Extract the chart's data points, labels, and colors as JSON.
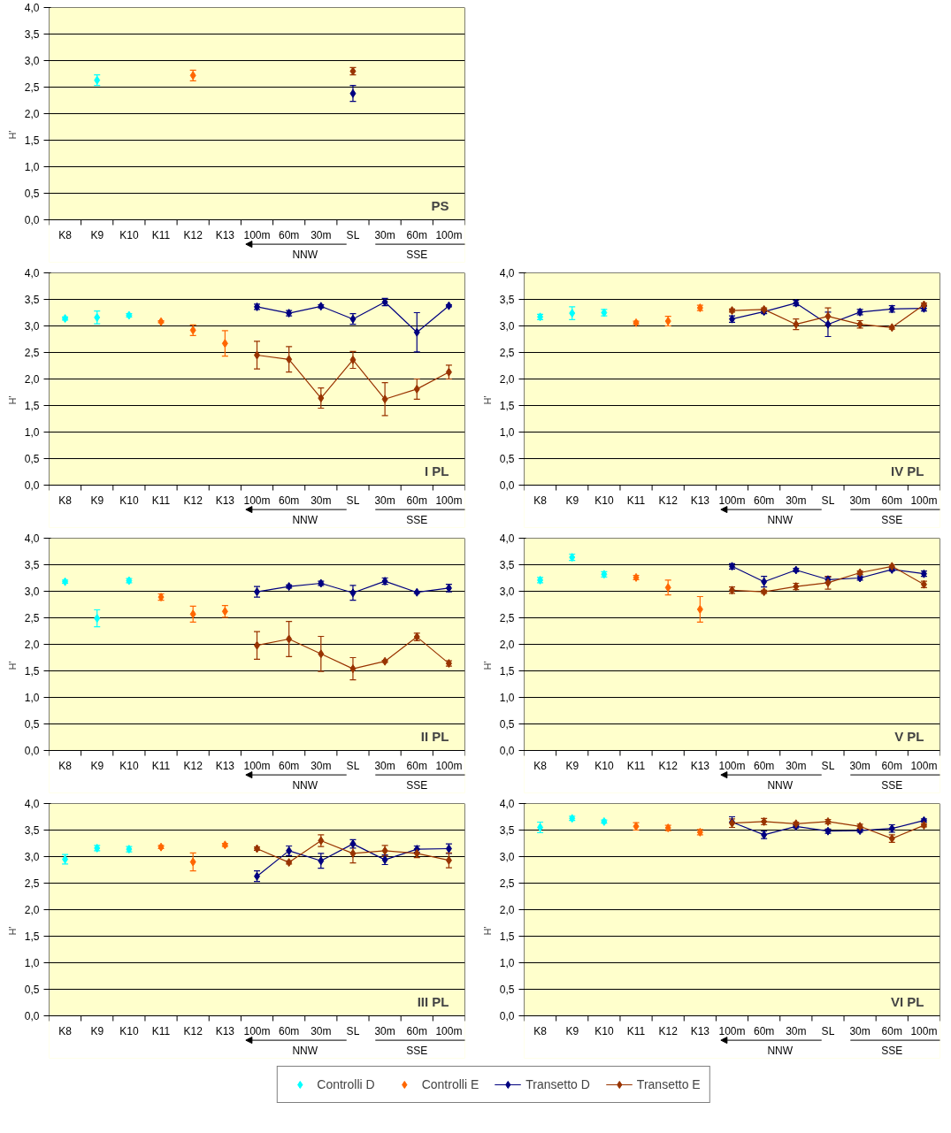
{
  "chart_data": [
    {
      "type": "scatter",
      "title": "PS",
      "ylabel": "H'",
      "categories": [
        "K8",
        "K9",
        "K10",
        "K11",
        "K12",
        "K13",
        "100m",
        "60m",
        "30m",
        "SL",
        "30m",
        "60m",
        "100m"
      ],
      "ylim": [
        0,
        4
      ],
      "yticks": [
        {
          "value": 0,
          "label": "0,0"
        },
        {
          "value": 0.5,
          "label": "0,5"
        },
        {
          "value": 1,
          "label": "1,0"
        },
        {
          "value": 1.5,
          "label": "1,5"
        },
        {
          "value": 2,
          "label": "2,0"
        },
        {
          "value": 2.5,
          "label": "2,5"
        },
        {
          "value": 3,
          "label": "3,0"
        },
        {
          "value": 3.5,
          "label": "3,5"
        },
        {
          "value": 4,
          "label": "4,0"
        }
      ],
      "grid": "y",
      "marker": "diamond",
      "annotations": [
        "NNW",
        "SSE"
      ],
      "series": [
        {
          "color": "#00ffff",
          "values": [
            null,
            2.63,
            null,
            null,
            null,
            null,
            null,
            null,
            null,
            null,
            null,
            null,
            null
          ],
          "errors": [
            null,
            0.1,
            null,
            null,
            null,
            null,
            null,
            null,
            null,
            null,
            null,
            null,
            null
          ]
        },
        {
          "color": "#ff6600",
          "values": [
            null,
            null,
            null,
            null,
            2.72,
            null,
            null,
            null,
            null,
            null,
            null,
            null,
            null
          ],
          "errors": [
            null,
            null,
            null,
            null,
            0.1,
            null,
            null,
            null,
            null,
            null,
            null,
            null,
            null
          ]
        },
        {
          "type": "line",
          "color": "#000080",
          "values": [
            null,
            null,
            null,
            null,
            null,
            null,
            null,
            null,
            null,
            2.38,
            null,
            null,
            null
          ],
          "errors": [
            null,
            null,
            null,
            null,
            null,
            null,
            null,
            null,
            null,
            0.15,
            null,
            null,
            null
          ]
        },
        {
          "type": "line",
          "color": "#993300",
          "values": [
            null,
            null,
            null,
            null,
            null,
            null,
            null,
            null,
            null,
            2.8,
            null,
            null,
            null
          ],
          "errors": [
            null,
            null,
            null,
            null,
            null,
            null,
            null,
            null,
            null,
            0.07,
            null,
            null,
            null
          ]
        }
      ]
    },
    {
      "type": "scatter",
      "title": "I PL",
      "ylabel": "H'",
      "categories": [
        "K8",
        "K9",
        "K10",
        "K11",
        "K12",
        "K13",
        "100m",
        "60m",
        "30m",
        "SL",
        "30m",
        "60m",
        "100m"
      ],
      "ylim": [
        0,
        4
      ],
      "yticks": [
        {
          "value": 0,
          "label": "0,0"
        },
        {
          "value": 0.5,
          "label": "0,5"
        },
        {
          "value": 1,
          "label": "1,0"
        },
        {
          "value": 1.5,
          "label": "1,5"
        },
        {
          "value": 2,
          "label": "2,0"
        },
        {
          "value": 2.5,
          "label": "2,5"
        },
        {
          "value": 3,
          "label": "3,0"
        },
        {
          "value": 3.5,
          "label": "3,5"
        },
        {
          "value": 4,
          "label": "4,0"
        }
      ],
      "grid": "y",
      "marker": "diamond",
      "annotations": [
        "NNW",
        "SSE"
      ],
      "series": [
        {
          "color": "#00ffff",
          "values": [
            3.14,
            3.16,
            3.2,
            null,
            null,
            null,
            null,
            null,
            null,
            null,
            null,
            null,
            null
          ],
          "errors": [
            0.03,
            0.12,
            0.03,
            null,
            null,
            null,
            null,
            null,
            null,
            null,
            null,
            null,
            null
          ]
        },
        {
          "color": "#ff6600",
          "values": [
            null,
            null,
            null,
            3.08,
            2.92,
            2.67,
            null,
            null,
            null,
            null,
            null,
            null,
            null
          ],
          "errors": [
            null,
            null,
            null,
            0.02,
            0.1,
            0.24,
            null,
            null,
            null,
            null,
            null,
            null,
            null
          ]
        },
        {
          "type": "line",
          "color": "#000080",
          "values": [
            null,
            null,
            null,
            null,
            null,
            null,
            3.36,
            3.24,
            3.37,
            3.13,
            3.45,
            2.88,
            3.38
          ],
          "errors": [
            null,
            null,
            null,
            null,
            null,
            null,
            0.05,
            0.05,
            0.03,
            0.1,
            0.07,
            0.37,
            0.02
          ]
        },
        {
          "type": "line",
          "color": "#993300",
          "values": [
            null,
            null,
            null,
            null,
            null,
            null,
            2.45,
            2.37,
            1.64,
            2.36,
            1.62,
            1.81,
            2.13
          ],
          "errors": [
            null,
            null,
            null,
            null,
            null,
            null,
            0.26,
            0.24,
            0.19,
            0.16,
            0.31,
            0.19,
            0.13
          ]
        }
      ]
    },
    {
      "type": "scatter",
      "title": "IV PL",
      "ylabel": "H'",
      "categories": [
        "K8",
        "K9",
        "K10",
        "K11",
        "K12",
        "K13",
        "100m",
        "60m",
        "30m",
        "SL",
        "30m",
        "60m",
        "100m"
      ],
      "ylim": [
        0,
        4
      ],
      "yticks": [
        {
          "value": 0,
          "label": "0,0"
        },
        {
          "value": 0.5,
          "label": "0,5"
        },
        {
          "value": 1,
          "label": "1,0"
        },
        {
          "value": 1.5,
          "label": "1,5"
        },
        {
          "value": 2,
          "label": "2,0"
        },
        {
          "value": 2.5,
          "label": "2,5"
        },
        {
          "value": 3,
          "label": "3,0"
        },
        {
          "value": 3.5,
          "label": "3,5"
        },
        {
          "value": 4,
          "label": "4,0"
        }
      ],
      "grid": "y",
      "marker": "diamond",
      "annotations": [
        "NNW",
        "SSE"
      ],
      "series": [
        {
          "color": "#00ffff",
          "values": [
            3.17,
            3.24,
            3.25,
            null,
            null,
            null,
            null,
            null,
            null,
            null,
            null,
            null,
            null
          ],
          "errors": [
            0.05,
            0.12,
            0.06,
            null,
            null,
            null,
            null,
            null,
            null,
            null,
            null,
            null,
            null
          ]
        },
        {
          "color": "#ff6600",
          "values": [
            null,
            null,
            null,
            3.06,
            3.09,
            3.34,
            null,
            null,
            null,
            null,
            null,
            null,
            null
          ],
          "errors": [
            null,
            null,
            null,
            0.03,
            0.09,
            0.05,
            null,
            null,
            null,
            null,
            null,
            null,
            null
          ]
        },
        {
          "type": "line",
          "color": "#000080",
          "values": [
            null,
            null,
            null,
            null,
            null,
            null,
            3.13,
            3.27,
            3.43,
            3.03,
            3.26,
            3.32,
            3.33
          ],
          "errors": [
            null,
            null,
            null,
            null,
            null,
            null,
            0.06,
            0.04,
            0.05,
            0.23,
            0.05,
            0.06,
            0.05
          ]
        },
        {
          "type": "line",
          "color": "#993300",
          "values": [
            null,
            null,
            null,
            null,
            null,
            null,
            3.29,
            3.31,
            3.03,
            3.18,
            3.03,
            2.97,
            3.4
          ],
          "errors": [
            null,
            null,
            null,
            null,
            null,
            null,
            0.03,
            0.03,
            0.1,
            0.16,
            0.07,
            0.03,
            0.03
          ]
        }
      ]
    },
    {
      "type": "scatter",
      "title": "II PL",
      "ylabel": "H'",
      "categories": [
        "K8",
        "K9",
        "K10",
        "K11",
        "K12",
        "K13",
        "100m",
        "60m",
        "30m",
        "SL",
        "30m",
        "60m",
        "100m"
      ],
      "ylim": [
        0,
        4
      ],
      "yticks": [
        {
          "value": 0,
          "label": "0,0"
        },
        {
          "value": 0.5,
          "label": "0,5"
        },
        {
          "value": 1,
          "label": "1,0"
        },
        {
          "value": 1.5,
          "label": "1,5"
        },
        {
          "value": 2,
          "label": "2,0"
        },
        {
          "value": 2.5,
          "label": "2,5"
        },
        {
          "value": 3,
          "label": "3,0"
        },
        {
          "value": 3.5,
          "label": "3,5"
        },
        {
          "value": 4,
          "label": "4,0"
        }
      ],
      "grid": "y",
      "marker": "diamond",
      "annotations": [
        "NNW",
        "SSE"
      ],
      "series": [
        {
          "color": "#00ffff",
          "values": [
            3.18,
            2.49,
            3.2,
            null,
            null,
            null,
            null,
            null,
            null,
            null,
            null,
            null,
            null
          ],
          "errors": [
            0.03,
            0.16,
            0.04,
            null,
            null,
            null,
            null,
            null,
            null,
            null,
            null,
            null,
            null
          ]
        },
        {
          "color": "#ff6600",
          "values": [
            null,
            null,
            null,
            2.89,
            2.57,
            2.62,
            null,
            null,
            null,
            null,
            null,
            null,
            null
          ],
          "errors": [
            null,
            null,
            null,
            0.06,
            0.15,
            0.11,
            null,
            null,
            null,
            null,
            null,
            null,
            null
          ]
        },
        {
          "type": "line",
          "color": "#000080",
          "values": [
            null,
            null,
            null,
            null,
            null,
            null,
            2.99,
            3.09,
            3.15,
            2.97,
            3.19,
            2.98,
            3.06
          ],
          "errors": [
            null,
            null,
            null,
            null,
            null,
            null,
            0.1,
            0.03,
            0.04,
            0.14,
            0.06,
            0.02,
            0.07
          ]
        },
        {
          "type": "line",
          "color": "#993300",
          "values": [
            null,
            null,
            null,
            null,
            null,
            null,
            1.98,
            2.1,
            1.82,
            1.54,
            1.68,
            2.14,
            1.64
          ],
          "errors": [
            null,
            null,
            null,
            null,
            null,
            null,
            0.26,
            0.33,
            0.33,
            0.21,
            0.02,
            0.07,
            0.05
          ]
        }
      ]
    },
    {
      "type": "scatter",
      "title": "V PL",
      "ylabel": "H'",
      "categories": [
        "K8",
        "K9",
        "K10",
        "K11",
        "K12",
        "K13",
        "100m",
        "60m",
        "30m",
        "SL",
        "30m",
        "60m",
        "100m"
      ],
      "ylim": [
        0,
        4
      ],
      "yticks": [
        {
          "value": 0,
          "label": "0,0"
        },
        {
          "value": 0.5,
          "label": "0,5"
        },
        {
          "value": 1,
          "label": "1,0"
        },
        {
          "value": 1.5,
          "label": "1,5"
        },
        {
          "value": 2,
          "label": "2,0"
        },
        {
          "value": 2.5,
          "label": "2,5"
        },
        {
          "value": 3,
          "label": "3,0"
        },
        {
          "value": 3.5,
          "label": "3,5"
        },
        {
          "value": 4,
          "label": "4,0"
        }
      ],
      "grid": "y",
      "marker": "diamond",
      "annotations": [
        "NNW",
        "SSE"
      ],
      "series": [
        {
          "color": "#00ffff",
          "values": [
            3.21,
            3.64,
            3.32,
            null,
            null,
            null,
            null,
            null,
            null,
            null,
            null,
            null,
            null
          ],
          "errors": [
            0.05,
            0.06,
            0.05,
            null,
            null,
            null,
            null,
            null,
            null,
            null,
            null,
            null,
            null
          ]
        },
        {
          "color": "#ff6600",
          "values": [
            null,
            null,
            null,
            3.26,
            3.07,
            2.66,
            null,
            null,
            null,
            null,
            null,
            null,
            null
          ],
          "errors": [
            null,
            null,
            null,
            0.04,
            0.14,
            0.24,
            null,
            null,
            null,
            null,
            null,
            null,
            null
          ]
        },
        {
          "type": "line",
          "color": "#000080",
          "values": [
            null,
            null,
            null,
            null,
            null,
            null,
            3.47,
            3.18,
            3.4,
            3.22,
            3.25,
            3.41,
            3.33
          ],
          "errors": [
            null,
            null,
            null,
            null,
            null,
            null,
            0.05,
            0.1,
            0.03,
            0.05,
            0.04,
            0.03,
            0.05
          ]
        },
        {
          "type": "line",
          "color": "#993300",
          "values": [
            null,
            null,
            null,
            null,
            null,
            null,
            3.02,
            2.99,
            3.09,
            3.16,
            3.35,
            3.47,
            3.13
          ],
          "errors": [
            null,
            null,
            null,
            null,
            null,
            null,
            0.06,
            0.03,
            0.06,
            0.12,
            0.03,
            0.03,
            0.06
          ]
        }
      ]
    },
    {
      "type": "scatter",
      "title": "III PL",
      "ylabel": "H'",
      "categories": [
        "K8",
        "K9",
        "K10",
        "K11",
        "K12",
        "K13",
        "100m",
        "60m",
        "30m",
        "SL",
        "30m",
        "60m",
        "100m"
      ],
      "ylim": [
        0,
        4
      ],
      "yticks": [
        {
          "value": 0,
          "label": "0,0"
        },
        {
          "value": 0.5,
          "label": "0,5"
        },
        {
          "value": 1,
          "label": "1,0"
        },
        {
          "value": 1.5,
          "label": "1,5"
        },
        {
          "value": 2,
          "label": "2,0"
        },
        {
          "value": 2.5,
          "label": "2,5"
        },
        {
          "value": 3,
          "label": "3,0"
        },
        {
          "value": 3.5,
          "label": "3,5"
        },
        {
          "value": 4,
          "label": "4,0"
        }
      ],
      "grid": "y",
      "marker": "diamond",
      "annotations": [
        "NNW",
        "SSE"
      ],
      "series": [
        {
          "color": "#00ffff",
          "values": [
            2.95,
            3.16,
            3.14,
            null,
            null,
            null,
            null,
            null,
            null,
            null,
            null,
            null,
            null
          ],
          "errors": [
            0.09,
            0.05,
            0.05,
            null,
            null,
            null,
            null,
            null,
            null,
            null,
            null,
            null,
            null
          ]
        },
        {
          "color": "#ff6600",
          "values": [
            null,
            null,
            null,
            3.18,
            2.9,
            3.22,
            null,
            null,
            null,
            null,
            null,
            null,
            null
          ],
          "errors": [
            null,
            null,
            null,
            0.03,
            0.17,
            0.03,
            null,
            null,
            null,
            null,
            null,
            null,
            null
          ]
        },
        {
          "type": "line",
          "color": "#000080",
          "values": [
            null,
            null,
            null,
            null,
            null,
            null,
            2.63,
            3.11,
            2.92,
            3.24,
            2.94,
            3.14,
            3.15
          ],
          "errors": [
            null,
            null,
            null,
            null,
            null,
            null,
            0.1,
            0.09,
            0.14,
            0.08,
            0.09,
            0.06,
            0.09
          ]
        },
        {
          "type": "line",
          "color": "#993300",
          "values": [
            null,
            null,
            null,
            null,
            null,
            null,
            3.15,
            2.89,
            3.3,
            3.06,
            3.11,
            3.06,
            2.93
          ],
          "errors": [
            null,
            null,
            null,
            null,
            null,
            null,
            0.03,
            0.03,
            0.11,
            0.18,
            0.1,
            0.08,
            0.14
          ]
        }
      ]
    },
    {
      "type": "scatter",
      "title": "VI PL",
      "ylabel": "H'",
      "categories": [
        "K8",
        "K9",
        "K10",
        "K11",
        "K12",
        "K13",
        "100m",
        "60m",
        "30m",
        "SL",
        "30m",
        "60m",
        "100m"
      ],
      "ylim": [
        0,
        4
      ],
      "yticks": [
        {
          "value": 0,
          "label": "0,0"
        },
        {
          "value": 0.5,
          "label": "0,5"
        },
        {
          "value": 1,
          "label": "1,0"
        },
        {
          "value": 1.5,
          "label": "1,5"
        },
        {
          "value": 2,
          "label": "2,0"
        },
        {
          "value": 2.5,
          "label": "2,5"
        },
        {
          "value": 3,
          "label": "3,0"
        },
        {
          "value": 3.5,
          "label": "3,5"
        },
        {
          "value": 4,
          "label": "4,0"
        }
      ],
      "grid": "y",
      "marker": "diamond",
      "annotations": [
        "NNW",
        "SSE"
      ],
      "legend": "bottom",
      "series": [
        {
          "name": "Controlli D",
          "color": "#00ffff",
          "values": [
            3.55,
            3.72,
            3.66,
            null,
            null,
            null,
            null,
            null,
            null,
            null,
            null,
            null,
            null
          ],
          "errors": [
            0.1,
            0.04,
            0.03,
            null,
            null,
            null,
            null,
            null,
            null,
            null,
            null,
            null,
            null
          ]
        },
        {
          "name": "Controlli E",
          "color": "#ff6600",
          "values": [
            null,
            null,
            null,
            3.57,
            3.54,
            3.46,
            null,
            null,
            null,
            null,
            null,
            null,
            null
          ],
          "errors": [
            null,
            null,
            null,
            0.07,
            0.05,
            0.05,
            null,
            null,
            null,
            null,
            null,
            null,
            null
          ]
        },
        {
          "name": "Transetto D",
          "type": "line",
          "color": "#000080",
          "values": [
            null,
            null,
            null,
            null,
            null,
            null,
            3.65,
            3.41,
            3.57,
            3.48,
            3.49,
            3.53,
            3.68
          ],
          "errors": [
            null,
            null,
            null,
            null,
            null,
            null,
            0.1,
            0.07,
            0.03,
            0.04,
            0.03,
            0.07,
            0.03
          ]
        },
        {
          "name": "Transetto E",
          "type": "line",
          "color": "#993300",
          "values": [
            null,
            null,
            null,
            null,
            null,
            null,
            3.63,
            3.66,
            3.62,
            3.66,
            3.57,
            3.34,
            3.59
          ],
          "errors": [
            null,
            null,
            null,
            null,
            null,
            null,
            0.08,
            0.06,
            0.03,
            0.04,
            0.04,
            0.07,
            0.03
          ]
        }
      ]
    }
  ]
}
